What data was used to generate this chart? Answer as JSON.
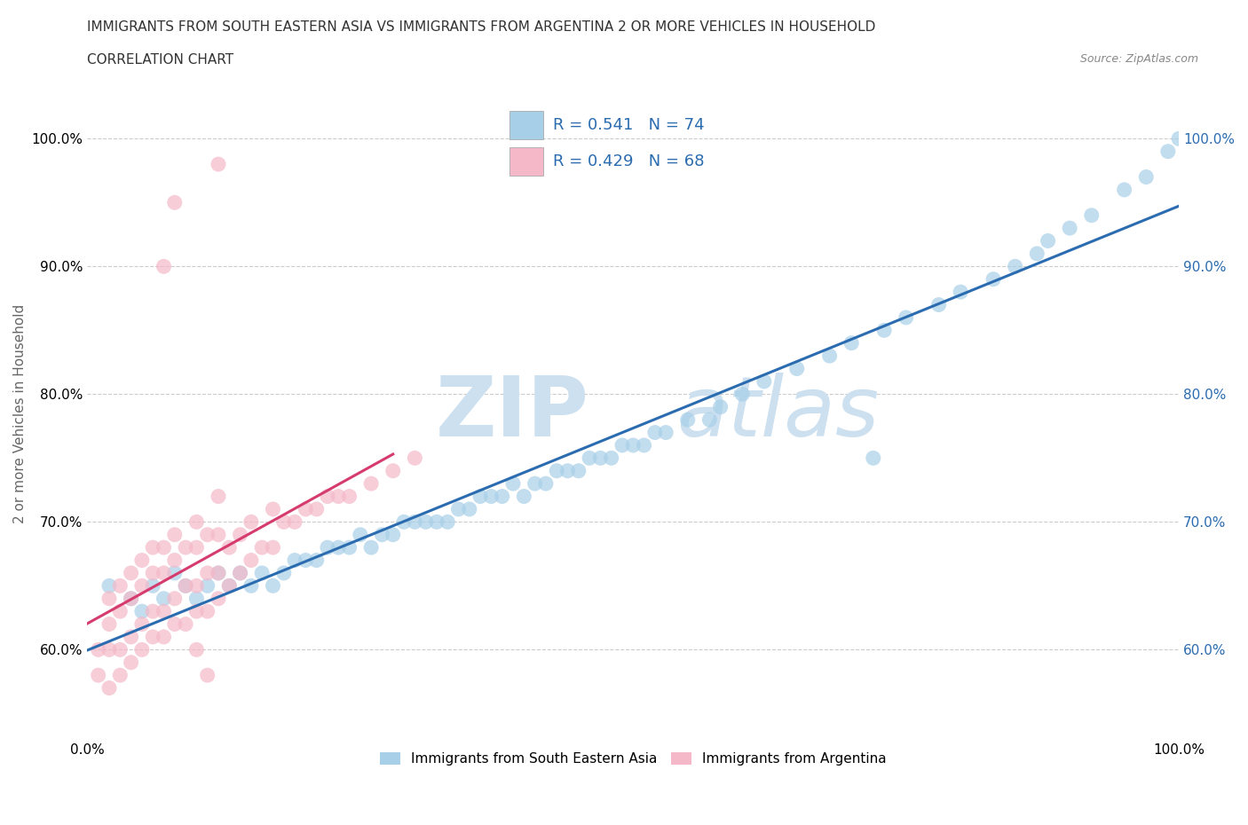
{
  "title_line1": "IMMIGRANTS FROM SOUTH EASTERN ASIA VS IMMIGRANTS FROM ARGENTINA 2 OR MORE VEHICLES IN HOUSEHOLD",
  "title_line2": "CORRELATION CHART",
  "source_text": "Source: ZipAtlas.com",
  "ylabel": "2 or more Vehicles in Household",
  "xlim": [
    0.0,
    1.0
  ],
  "ylim": [
    0.53,
    1.04
  ],
  "blue_R": 0.541,
  "blue_N": 74,
  "pink_R": 0.429,
  "pink_N": 68,
  "blue_color": "#a8cfe8",
  "pink_color": "#f4b8c8",
  "blue_line_color": "#2b6cb0",
  "pink_line_color": "#d63b6e",
  "watermark_part1": "ZIP",
  "watermark_part2": "atlas",
  "blue_scatter_x": [
    0.02,
    0.04,
    0.05,
    0.06,
    0.07,
    0.08,
    0.09,
    0.1,
    0.11,
    0.12,
    0.13,
    0.14,
    0.15,
    0.16,
    0.17,
    0.18,
    0.19,
    0.2,
    0.21,
    0.22,
    0.23,
    0.24,
    0.25,
    0.26,
    0.27,
    0.28,
    0.29,
    0.3,
    0.31,
    0.32,
    0.33,
    0.34,
    0.35,
    0.36,
    0.37,
    0.38,
    0.39,
    0.4,
    0.41,
    0.42,
    0.43,
    0.44,
    0.45,
    0.46,
    0.47,
    0.48,
    0.49,
    0.5,
    0.51,
    0.52,
    0.53,
    0.55,
    0.57,
    0.58,
    0.6,
    0.62,
    0.65,
    0.68,
    0.7,
    0.73,
    0.75,
    0.78,
    0.8,
    0.83,
    0.85,
    0.87,
    0.88,
    0.9,
    0.92,
    0.95,
    0.97,
    0.99,
    1.0,
    0.72
  ],
  "blue_scatter_y": [
    0.65,
    0.64,
    0.63,
    0.65,
    0.64,
    0.66,
    0.65,
    0.64,
    0.65,
    0.66,
    0.65,
    0.66,
    0.65,
    0.66,
    0.65,
    0.66,
    0.67,
    0.67,
    0.67,
    0.68,
    0.68,
    0.68,
    0.69,
    0.68,
    0.69,
    0.69,
    0.7,
    0.7,
    0.7,
    0.7,
    0.7,
    0.71,
    0.71,
    0.72,
    0.72,
    0.72,
    0.73,
    0.72,
    0.73,
    0.73,
    0.74,
    0.74,
    0.74,
    0.75,
    0.75,
    0.75,
    0.76,
    0.76,
    0.76,
    0.77,
    0.77,
    0.78,
    0.78,
    0.79,
    0.8,
    0.81,
    0.82,
    0.83,
    0.84,
    0.85,
    0.86,
    0.87,
    0.88,
    0.89,
    0.9,
    0.91,
    0.92,
    0.93,
    0.94,
    0.96,
    0.97,
    0.99,
    1.0,
    0.75
  ],
  "pink_scatter_x": [
    0.01,
    0.01,
    0.02,
    0.02,
    0.02,
    0.02,
    0.03,
    0.03,
    0.03,
    0.03,
    0.04,
    0.04,
    0.04,
    0.04,
    0.05,
    0.05,
    0.05,
    0.05,
    0.06,
    0.06,
    0.06,
    0.06,
    0.07,
    0.07,
    0.07,
    0.07,
    0.08,
    0.08,
    0.08,
    0.08,
    0.09,
    0.09,
    0.09,
    0.1,
    0.1,
    0.1,
    0.1,
    0.11,
    0.11,
    0.11,
    0.12,
    0.12,
    0.12,
    0.12,
    0.13,
    0.13,
    0.14,
    0.14,
    0.15,
    0.15,
    0.16,
    0.17,
    0.17,
    0.18,
    0.19,
    0.2,
    0.21,
    0.22,
    0.23,
    0.24,
    0.26,
    0.28,
    0.3,
    0.1,
    0.11,
    0.07,
    0.08,
    0.12
  ],
  "pink_scatter_y": [
    0.58,
    0.6,
    0.57,
    0.6,
    0.62,
    0.64,
    0.58,
    0.6,
    0.63,
    0.65,
    0.59,
    0.61,
    0.64,
    0.66,
    0.6,
    0.62,
    0.65,
    0.67,
    0.61,
    0.63,
    0.66,
    0.68,
    0.61,
    0.63,
    0.66,
    0.68,
    0.62,
    0.64,
    0.67,
    0.69,
    0.62,
    0.65,
    0.68,
    0.63,
    0.65,
    0.68,
    0.7,
    0.63,
    0.66,
    0.69,
    0.64,
    0.66,
    0.69,
    0.72,
    0.65,
    0.68,
    0.66,
    0.69,
    0.67,
    0.7,
    0.68,
    0.68,
    0.71,
    0.7,
    0.7,
    0.71,
    0.71,
    0.72,
    0.72,
    0.72,
    0.73,
    0.74,
    0.75,
    0.6,
    0.58,
    0.9,
    0.95,
    0.98
  ],
  "yticks": [
    0.6,
    0.7,
    0.8,
    0.9,
    1.0
  ],
  "ytick_labels_left": [
    "60.0%",
    "70.0%",
    "80.0%",
    "90.0%",
    "100.0%"
  ],
  "ytick_labels_right": [
    "60.0%",
    "70.0%",
    "80.0%",
    "90.0%",
    "100.0%"
  ],
  "xticks": [
    0.0,
    0.25,
    0.5,
    0.75,
    1.0
  ],
  "xtick_labels": [
    "0.0%",
    "",
    "",
    "",
    "100.0%"
  ]
}
